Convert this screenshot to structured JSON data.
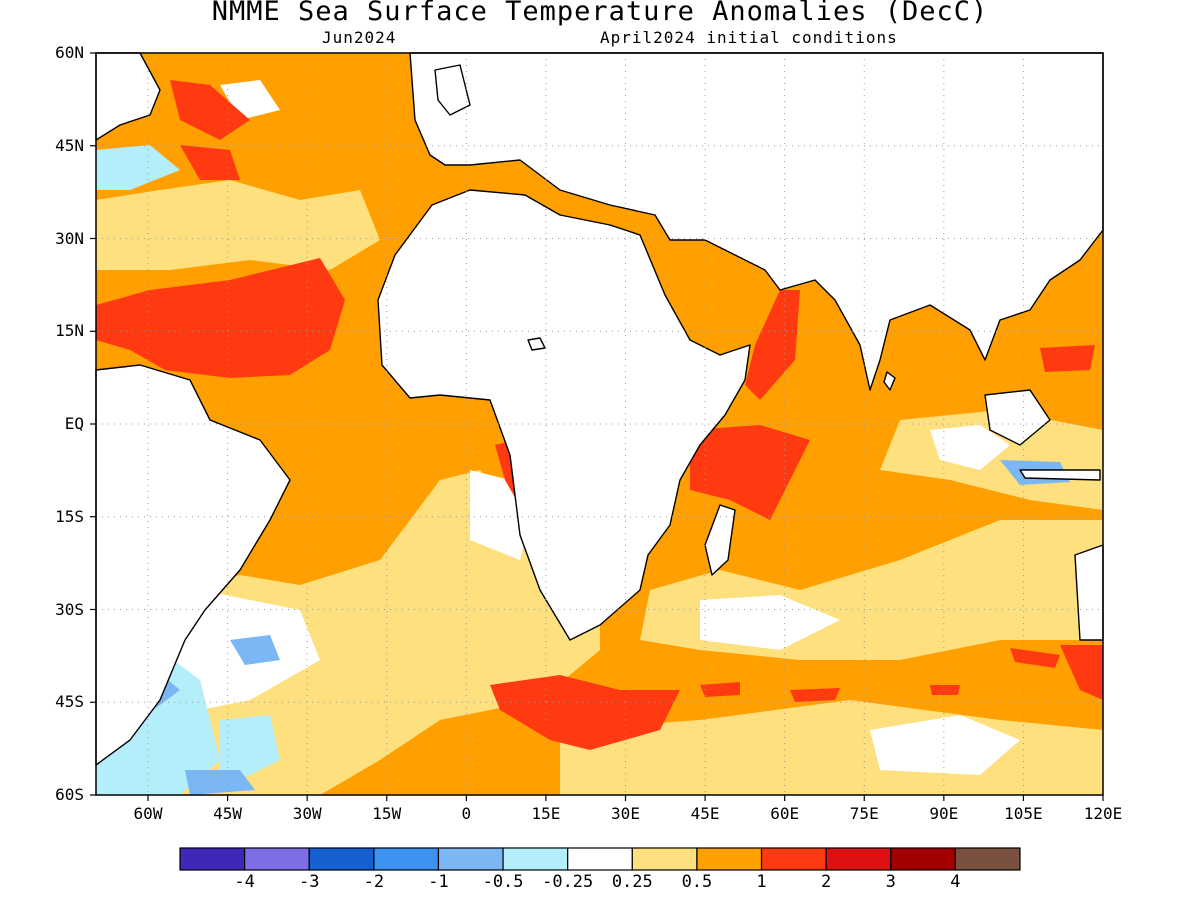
{
  "title": "NMME Sea Surface Temperature Anomalies (DecC)",
  "subtitle_left": "Jun2024",
  "subtitle_right": "April2024 initial conditions",
  "lat_labels": [
    "60N",
    "45N",
    "30N",
    "15N",
    "EQ",
    "15S",
    "30S",
    "45S",
    "60S"
  ],
  "lon_labels": [
    "60W",
    "45W",
    "30W",
    "15W",
    "0",
    "15E",
    "30E",
    "45E",
    "60E",
    "75E",
    "90E",
    "105E",
    "120E"
  ],
  "colorbar": {
    "colors": [
      "#3f28b8",
      "#7d6ee8",
      "#1561d1",
      "#3d91f0",
      "#7bb7f5",
      "#b4eefa",
      "#ffffff",
      "#ffe07f",
      "#ffa000",
      "#ff3a11",
      "#dd1111",
      "#a20000",
      "#7a5040"
    ],
    "labels": [
      "-4",
      "-3",
      "-2",
      "-1",
      "-0.5",
      "-0.25",
      "0.25",
      "0.5",
      "1",
      "2",
      "3",
      "4"
    ]
  },
  "colors": {
    "land": "#ffffff",
    "coast": "#000000",
    "grid": "#9a9a9a",
    "light_yellow": "#ffe07f",
    "orange": "#ffa000",
    "red": "#ff3a11",
    "dark_red": "#dd1111",
    "light_blue": "#b4eefa",
    "mid_blue": "#7bb7f5"
  }
}
